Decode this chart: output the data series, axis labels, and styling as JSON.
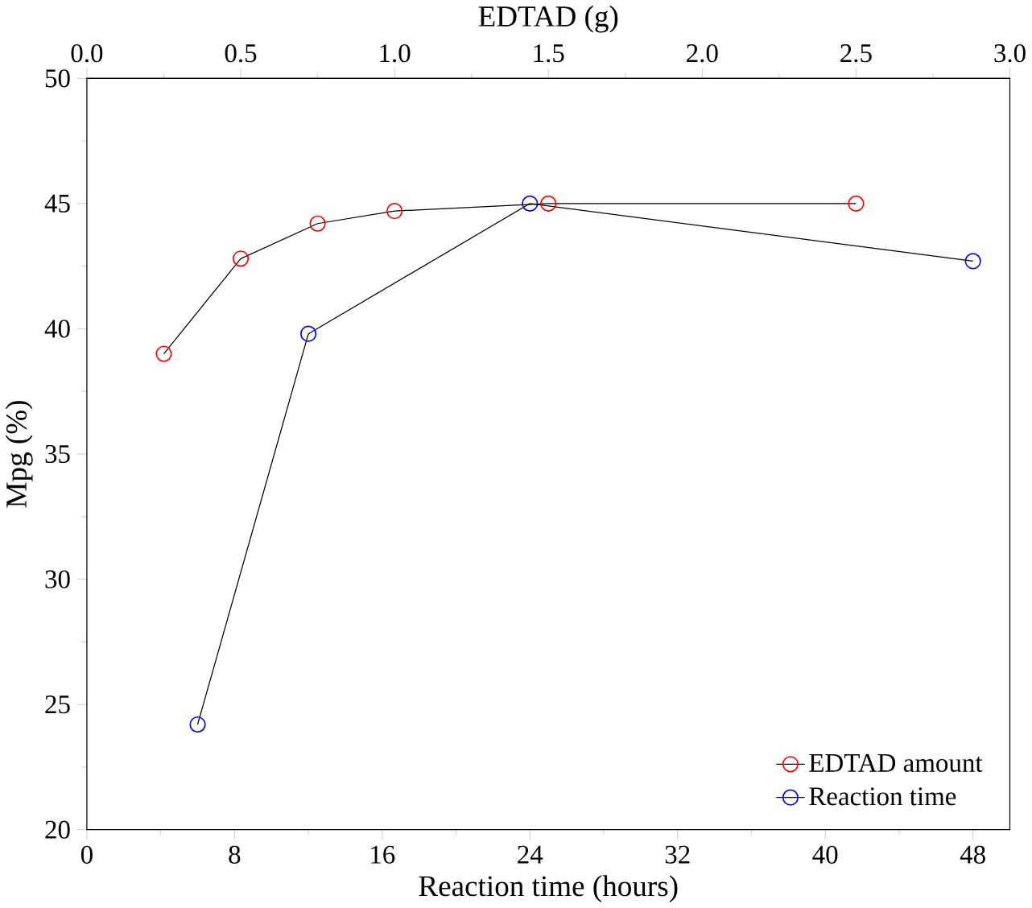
{
  "chart_data": {
    "type": "line",
    "xlabel": "Reaction time (hours)",
    "x2label": "EDTAD (g)",
    "ylabel": "Mpg (%)",
    "xlim": [
      0,
      50
    ],
    "xticks": [
      0,
      8,
      16,
      24,
      32,
      40,
      48
    ],
    "x2lim": [
      0,
      3
    ],
    "x2ticks": [
      {
        "value": 0,
        "label": "0.0"
      },
      {
        "value": 0.5,
        "label": "0.5"
      },
      {
        "value": 1,
        "label": "1.0"
      },
      {
        "value": 1.5,
        "label": "1.5"
      },
      {
        "value": 2,
        "label": "2.0"
      },
      {
        "value": 2.5,
        "label": "2.5"
      },
      {
        "value": 3,
        "label": "3.0"
      }
    ],
    "ylim": [
      20,
      50
    ],
    "yticks": [
      20,
      25,
      30,
      35,
      40,
      45,
      50
    ],
    "legend": "bottom right",
    "marker": "circle",
    "line_style": "solid",
    "grid": false,
    "series": [
      {
        "name": "EDTAD amount",
        "color": "#ff0000",
        "axis": "x2",
        "x": [
          0.25,
          0.5,
          0.75,
          1.0,
          1.5,
          2.5
        ],
        "values": [
          39.0,
          42.8,
          44.2,
          44.7,
          45.0,
          45.0
        ]
      },
      {
        "name": "Reaction time",
        "color": "#0000ff",
        "x": [
          6,
          12,
          24,
          48
        ],
        "values": [
          24.2,
          39.8,
          45.0,
          42.7
        ]
      }
    ]
  }
}
